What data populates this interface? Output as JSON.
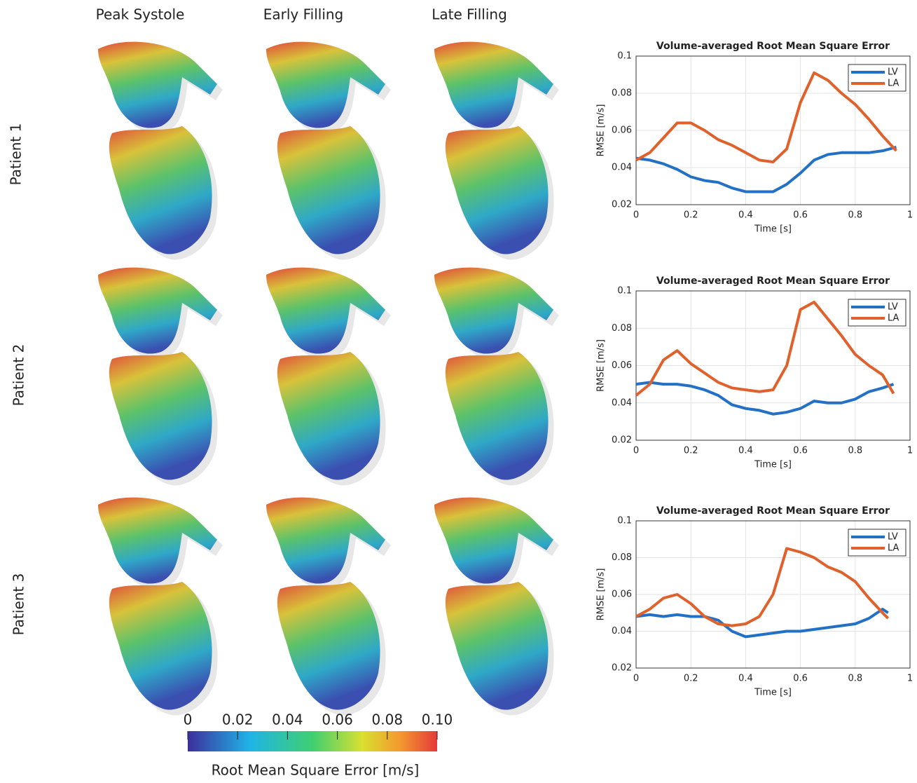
{
  "columns": [
    "Peak Systole",
    "Early Filling",
    "Late Filling"
  ],
  "rows": [
    "Patient 1",
    "Patient 2",
    "Patient 3"
  ],
  "colorbar": {
    "lim": [
      0,
      0.1
    ],
    "ticks": [
      0,
      0.02,
      0.04,
      0.06,
      0.08,
      {
        "value": 0.1,
        "label": "0.10"
      }
    ],
    "label": "Root Mean Square Error [m/s]"
  },
  "chart_data": [
    {
      "type": "line",
      "title": "Volume-averaged Root Mean Square Error",
      "x_label": "Time [s]",
      "y_label": "RMSE [m/s]",
      "x": [
        0,
        0.05,
        0.1,
        0.15,
        0.2,
        0.25,
        0.3,
        0.35,
        0.4,
        0.45,
        0.5,
        0.55,
        0.6,
        0.65,
        0.7,
        0.75,
        0.8,
        0.85,
        0.9,
        0.95
      ],
      "series": [
        {
          "name": "LV",
          "color": "#2371c6",
          "values": [
            0.045,
            0.044,
            0.042,
            0.039,
            0.035,
            0.033,
            0.032,
            0.029,
            0.027,
            0.027,
            0.027,
            0.031,
            0.037,
            0.044,
            0.047,
            0.048,
            0.048,
            0.048,
            0.049,
            0.051
          ]
        },
        {
          "name": "LA",
          "color": "#e0612b",
          "values": [
            0.044,
            0.048,
            0.056,
            0.064,
            0.064,
            0.06,
            0.055,
            0.052,
            0.048,
            0.044,
            0.043,
            0.05,
            0.075,
            0.091,
            0.087,
            0.08,
            0.074,
            0.066,
            0.057,
            0.049
          ]
        }
      ],
      "xlim": [
        0,
        1
      ],
      "xticks": [
        0,
        0.2,
        0.4,
        0.6,
        0.8,
        1
      ],
      "ylim": [
        0.02,
        0.1
      ],
      "yticks": [
        0.02,
        0.04,
        0.06,
        0.08,
        0.1
      ],
      "grid": true,
      "legend": "upper right"
    },
    {
      "type": "line",
      "title": "Volume-averaged Root Mean Square Error",
      "x_label": "Time [s]",
      "y_label": "RMSE [m/s]",
      "x": [
        0,
        0.05,
        0.1,
        0.15,
        0.2,
        0.25,
        0.3,
        0.35,
        0.4,
        0.45,
        0.5,
        0.55,
        0.6,
        0.65,
        0.7,
        0.75,
        0.8,
        0.85,
        0.9,
        0.94
      ],
      "series": [
        {
          "name": "LV",
          "color": "#2371c6",
          "values": [
            0.05,
            0.051,
            0.05,
            0.05,
            0.049,
            0.047,
            0.044,
            0.039,
            0.037,
            0.036,
            0.034,
            0.035,
            0.037,
            0.041,
            0.04,
            0.04,
            0.042,
            0.046,
            0.048,
            0.05
          ]
        },
        {
          "name": "LA",
          "color": "#e0612b",
          "values": [
            0.044,
            0.05,
            0.063,
            0.068,
            0.061,
            0.056,
            0.051,
            0.048,
            0.047,
            0.046,
            0.047,
            0.06,
            0.09,
            0.094,
            0.085,
            0.076,
            0.066,
            0.06,
            0.055,
            0.045
          ]
        }
      ],
      "xlim": [
        0,
        1
      ],
      "xticks": [
        0,
        0.2,
        0.4,
        0.6,
        0.8,
        1
      ],
      "ylim": [
        0.02,
        0.1
      ],
      "yticks": [
        0.02,
        0.04,
        0.06,
        0.08,
        0.1
      ],
      "grid": true,
      "legend": "upper right"
    },
    {
      "type": "line",
      "title": "Volume-averaged Root Mean Square Error",
      "x_label": "Time [s]",
      "y_label": "RMSE [m/s]",
      "x": [
        0,
        0.05,
        0.1,
        0.15,
        0.2,
        0.25,
        0.3,
        0.35,
        0.4,
        0.45,
        0.5,
        0.55,
        0.6,
        0.65,
        0.7,
        0.75,
        0.8,
        0.85,
        0.9,
        0.92
      ],
      "series": [
        {
          "name": "LV",
          "color": "#2371c6",
          "values": [
            0.048,
            0.049,
            0.048,
            0.049,
            0.048,
            0.048,
            0.046,
            0.04,
            0.037,
            0.038,
            0.039,
            0.04,
            0.04,
            0.041,
            0.042,
            0.043,
            0.044,
            0.047,
            0.052,
            0.05
          ]
        },
        {
          "name": "LA",
          "color": "#e0612b",
          "values": [
            0.048,
            0.052,
            0.058,
            0.06,
            0.055,
            0.048,
            0.044,
            0.043,
            0.044,
            0.048,
            0.06,
            0.085,
            0.083,
            0.08,
            0.075,
            0.072,
            0.067,
            0.058,
            0.05,
            0.047
          ]
        }
      ],
      "xlim": [
        0,
        1
      ],
      "xticks": [
        0,
        0.2,
        0.4,
        0.6,
        0.8,
        1
      ],
      "ylim": [
        0.02,
        0.1
      ],
      "yticks": [
        0.02,
        0.04,
        0.06,
        0.08,
        0.1
      ],
      "grid": true,
      "legend": "upper right"
    }
  ]
}
